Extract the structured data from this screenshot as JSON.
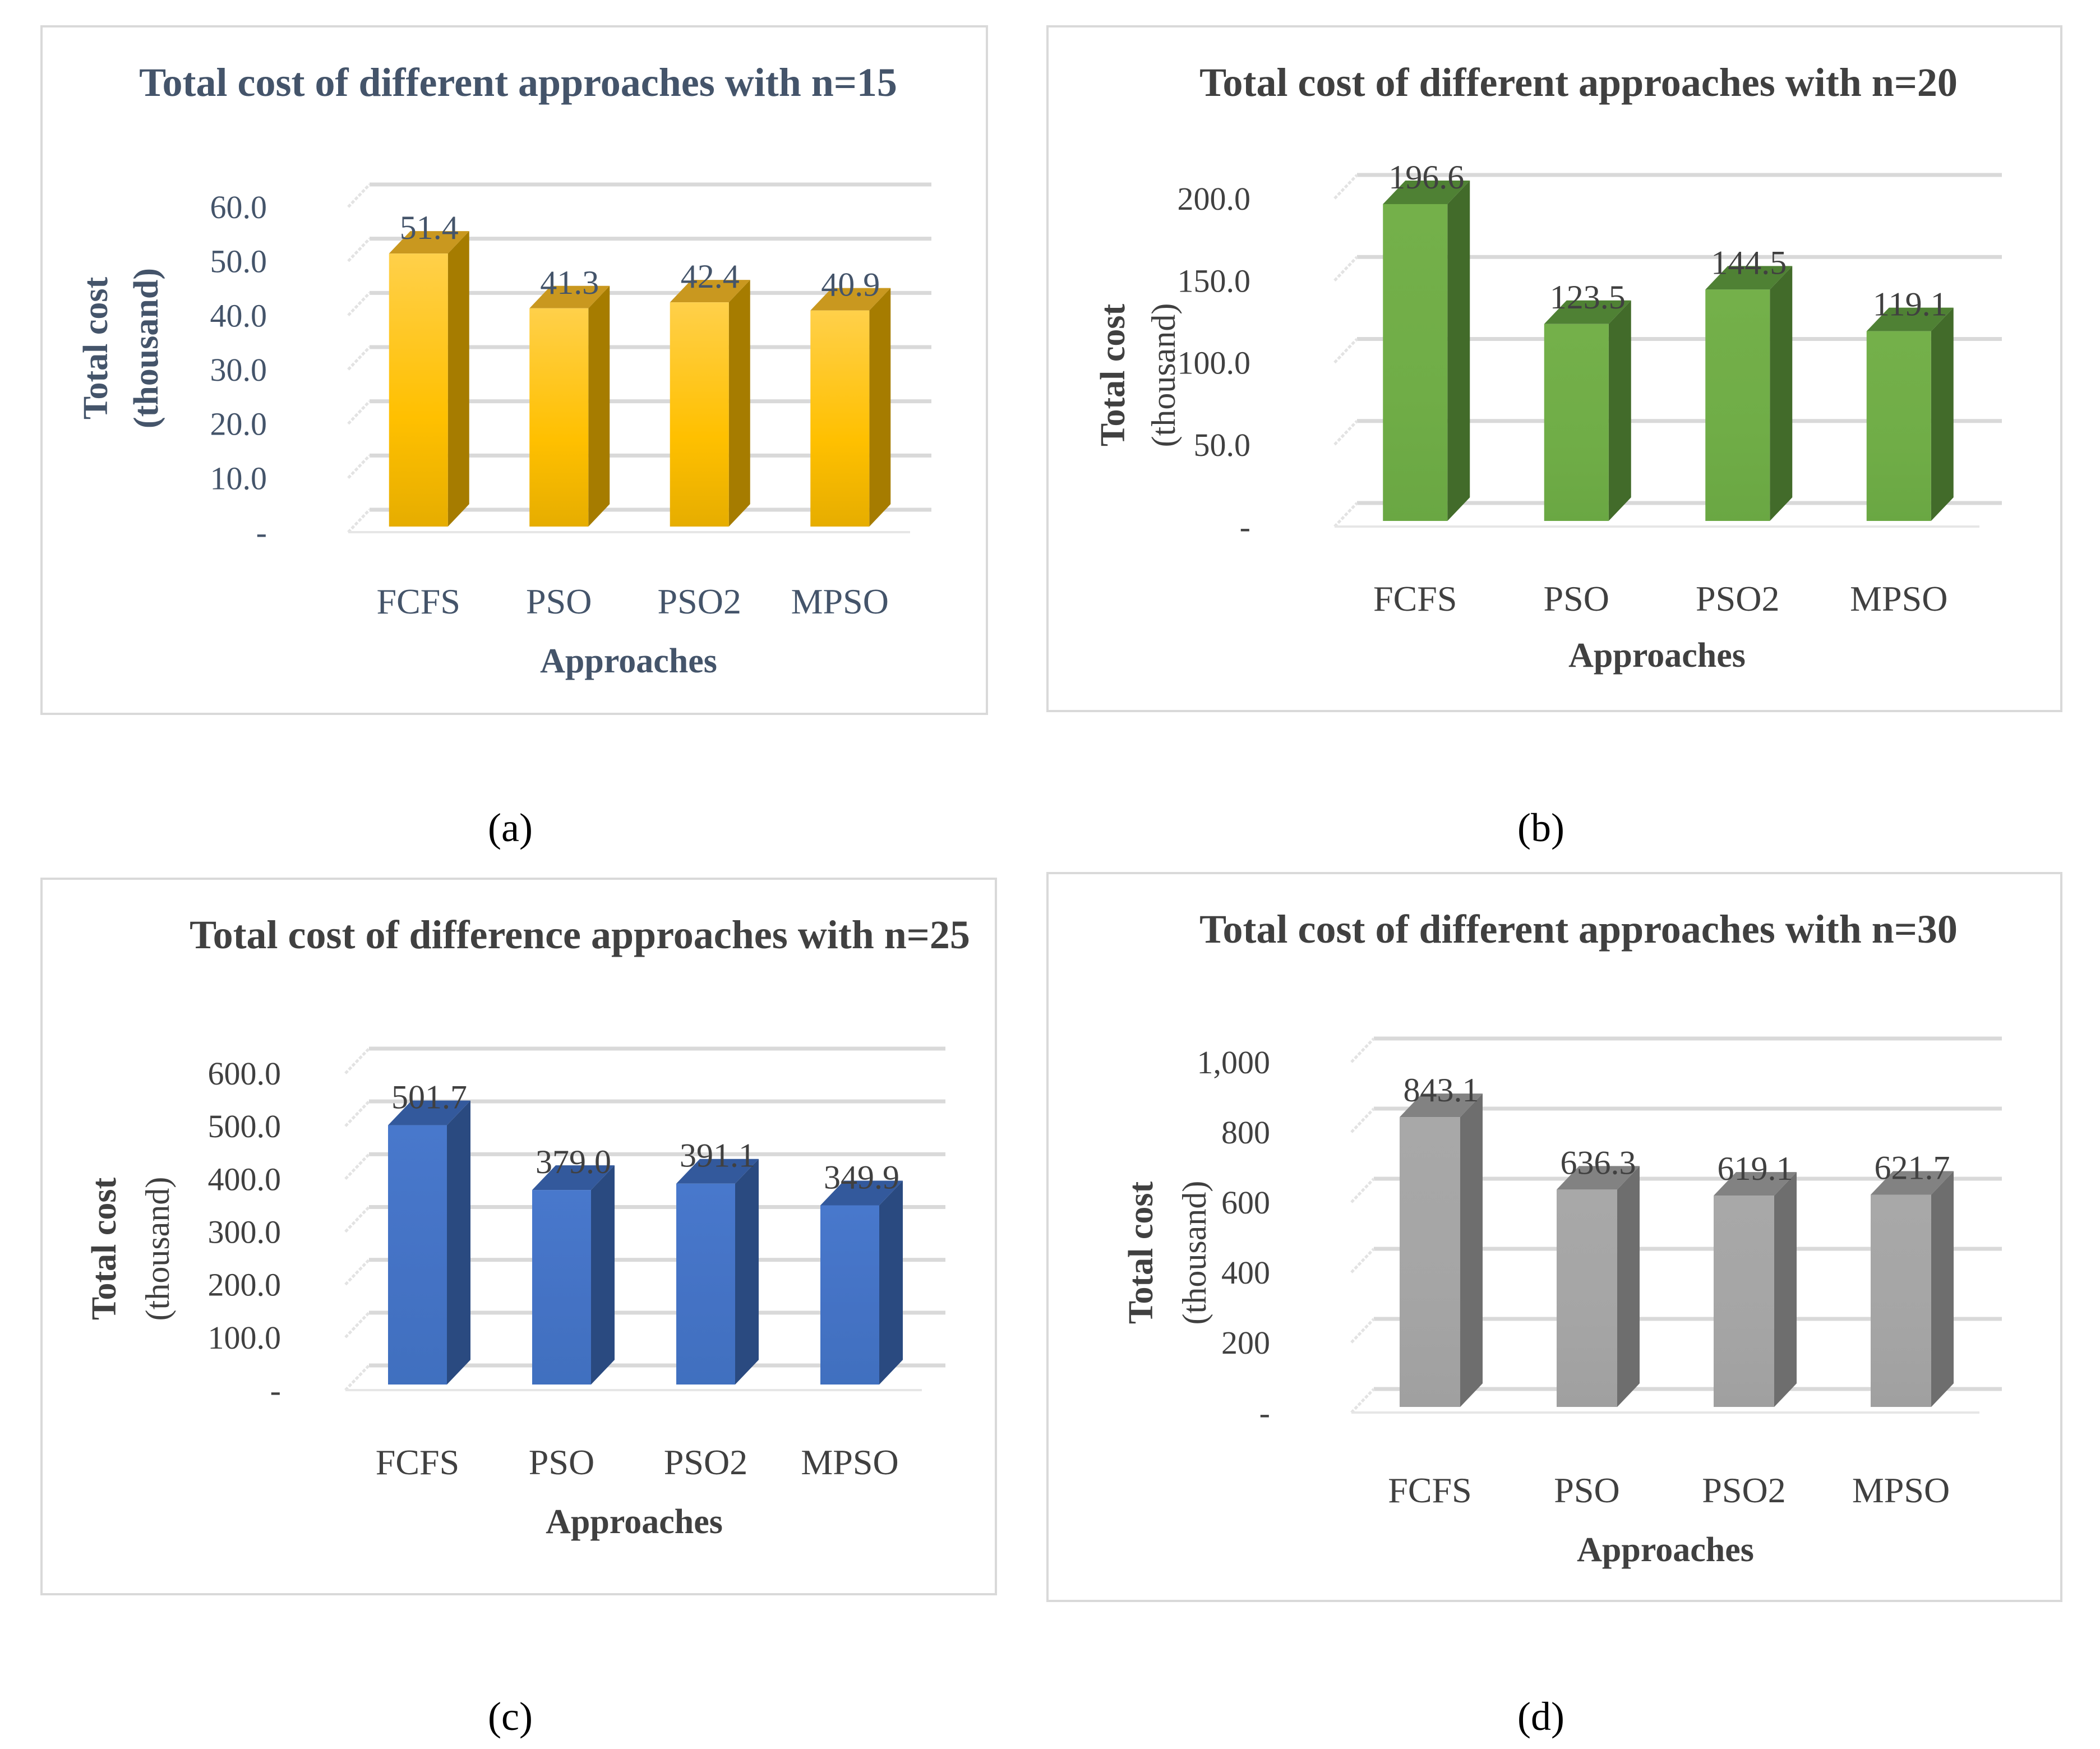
{
  "chart_data": [
    {
      "panel": "a",
      "type": "bar",
      "title": "Total cost of different approaches with n=15",
      "xlabel": "Approaches",
      "ylabel_line1": "Total cost",
      "ylabel_line2": "(thousand)",
      "categories": [
        "FCFS",
        "PSO",
        "PSO2",
        "MPSO"
      ],
      "values": [
        51.4,
        41.3,
        42.4,
        40.9
      ],
      "value_labels": [
        "51.4",
        "41.3",
        "42.4",
        "40.9"
      ],
      "ylim": [
        0,
        60
      ],
      "yticks": [
        0,
        10,
        20,
        30,
        40,
        50,
        60
      ],
      "ytick_labels": [
        "-",
        "10.0",
        "20.0",
        "30.0",
        "40.0",
        "50.0",
        "60.0"
      ],
      "colors": {
        "front_top": "#ffd04a",
        "front_mid": "#ffc000",
        "front_bottom": "#e6ad00",
        "side": "#a67c00",
        "top": "#c9981f",
        "text": "#44546a"
      },
      "caption": "(a)"
    },
    {
      "panel": "b",
      "type": "bar",
      "title": "Total cost of different approaches with n=20",
      "xlabel": "Approaches",
      "ylabel_line1": "Total cost",
      "ylabel_line2": "(thousand)",
      "categories": [
        "FCFS",
        "PSO",
        "PSO2",
        "MPSO"
      ],
      "values": [
        196.6,
        123.5,
        144.5,
        119.1
      ],
      "value_labels": [
        "196.6",
        "123.5",
        "144.5",
        "119.1"
      ],
      "ylim": [
        0,
        200
      ],
      "yticks": [
        0,
        50,
        100,
        150,
        200
      ],
      "ytick_labels": [
        "-",
        "50.0",
        "100.0",
        "150.0",
        "200.0"
      ],
      "colors": {
        "front_top": "#74b04a",
        "front_mid": "#70ad47",
        "front_bottom": "#6aa743",
        "side": "#426b2a",
        "top": "#4f8134",
        "text": "#404040"
      },
      "caption": "(b)"
    },
    {
      "panel": "c",
      "type": "bar",
      "title": "Total cost of difference approaches with n=25",
      "xlabel": "Approaches",
      "ylabel_line1": "Total cost",
      "ylabel_line2": "(thousand)",
      "categories": [
        "FCFS",
        "PSO",
        "PSO2",
        "MPSO"
      ],
      "values": [
        501.7,
        379.0,
        391.1,
        349.9
      ],
      "value_labels": [
        "501.7",
        "379.0",
        "391.1",
        "349.9"
      ],
      "ylim": [
        0,
        600
      ],
      "yticks": [
        0,
        100,
        200,
        300,
        400,
        500,
        600
      ],
      "ytick_labels": [
        "-",
        "100.0",
        "200.0",
        "300.0",
        "400.0",
        "500.0",
        "600.0"
      ],
      "colors": {
        "front_top": "#4878cc",
        "front_mid": "#4472c4",
        "front_bottom": "#4070bf",
        "side": "#2a4a80",
        "top": "#33599c",
        "text": "#404040"
      },
      "caption": "(c)"
    },
    {
      "panel": "d",
      "type": "bar",
      "title": "Total cost of different approaches with n=30",
      "xlabel": "Approaches",
      "ylabel_line1": "Total cost",
      "ylabel_line2": "(thousand)",
      "categories": [
        "FCFS",
        "PSO",
        "PSO2",
        "MPSO"
      ],
      "values": [
        843.1,
        636.3,
        619.1,
        621.7
      ],
      "value_labels": [
        "843.1",
        "636.3",
        "619.1",
        "621.7"
      ],
      "ylim": [
        0,
        1000
      ],
      "yticks": [
        0,
        200,
        400,
        600,
        800,
        1000
      ],
      "ytick_labels": [
        "-",
        "200",
        "400",
        "600",
        "800",
        "1,000"
      ],
      "colors": {
        "front_top": "#a8a8a8",
        "front_mid": "#a5a5a5",
        "front_bottom": "#a0a0a0",
        "side": "#6e6e6e",
        "top": "#828282",
        "text": "#404040"
      },
      "caption": "(d)"
    }
  ]
}
